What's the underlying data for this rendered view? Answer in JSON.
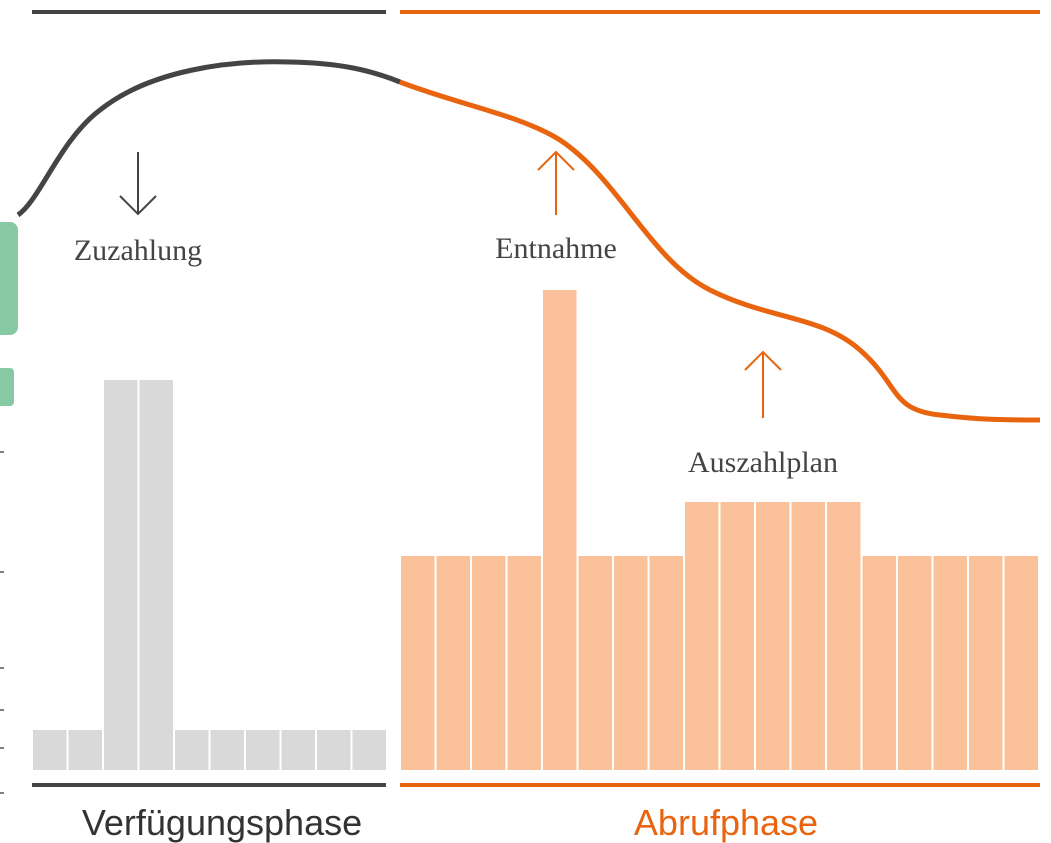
{
  "labels": {
    "deposit": "Zuzahlung",
    "withdrawal": "Entnahme",
    "payout_plan": "Auszahlplan"
  },
  "phases": {
    "accumulation": "Verfügungsphase",
    "decumulation": "Abrufphase"
  }
}
